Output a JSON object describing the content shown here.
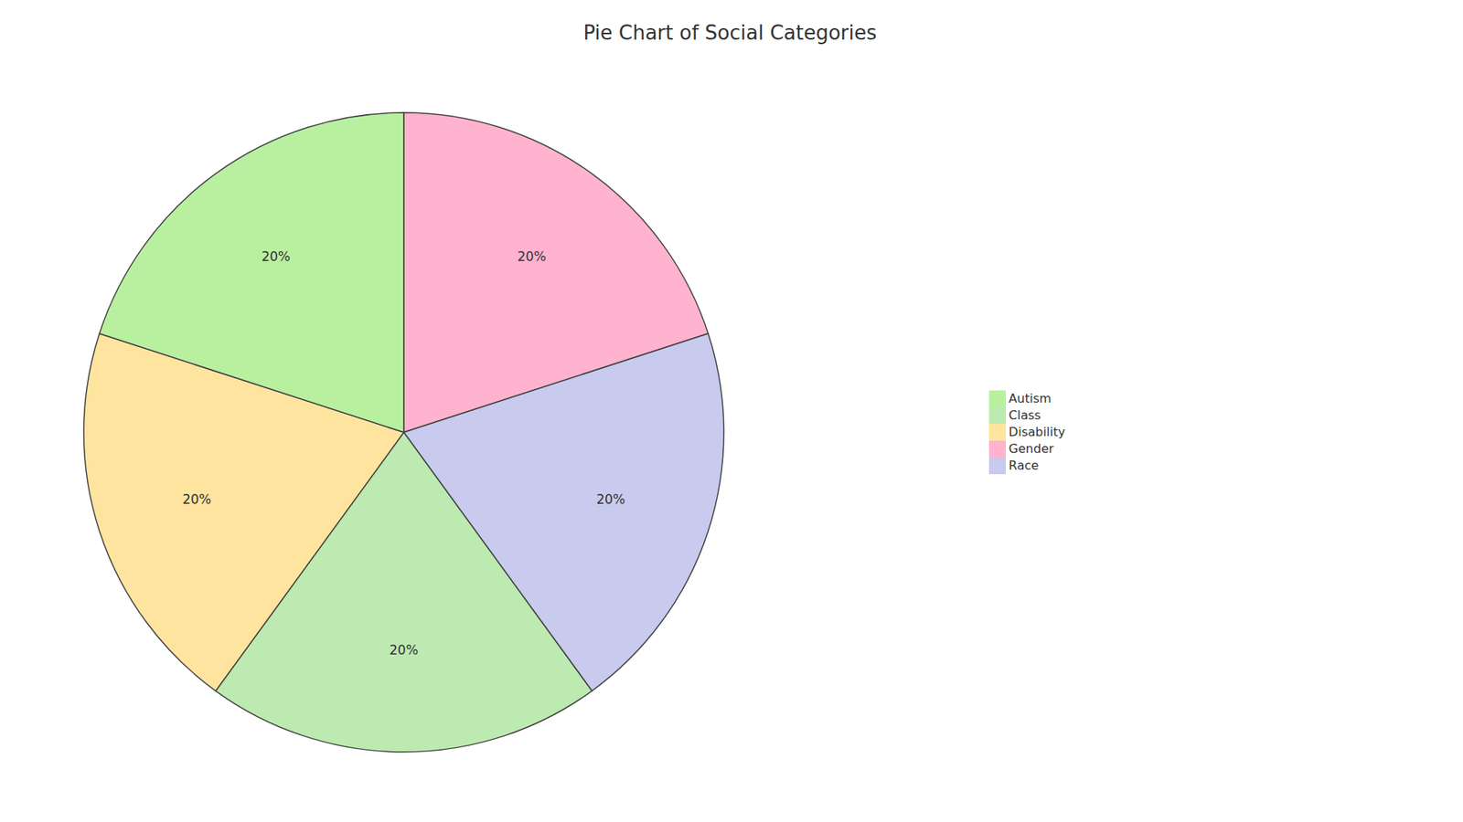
{
  "chart_data": {
    "type": "pie",
    "title": "Pie Chart of Social Categories",
    "categories": [
      "Gender",
      "Race",
      "Class",
      "Disability",
      "Autism"
    ],
    "values": [
      20,
      20,
      20,
      20,
      20
    ],
    "value_labels": [
      "20%",
      "20%",
      "20%",
      "20%",
      "20%"
    ],
    "colors": [
      "#FFB3CE",
      "#C8CAEE",
      "#BDEAB0",
      "#FFE4A0",
      "#B8F0A0"
    ],
    "data_labels": true,
    "legend": "right"
  }
}
